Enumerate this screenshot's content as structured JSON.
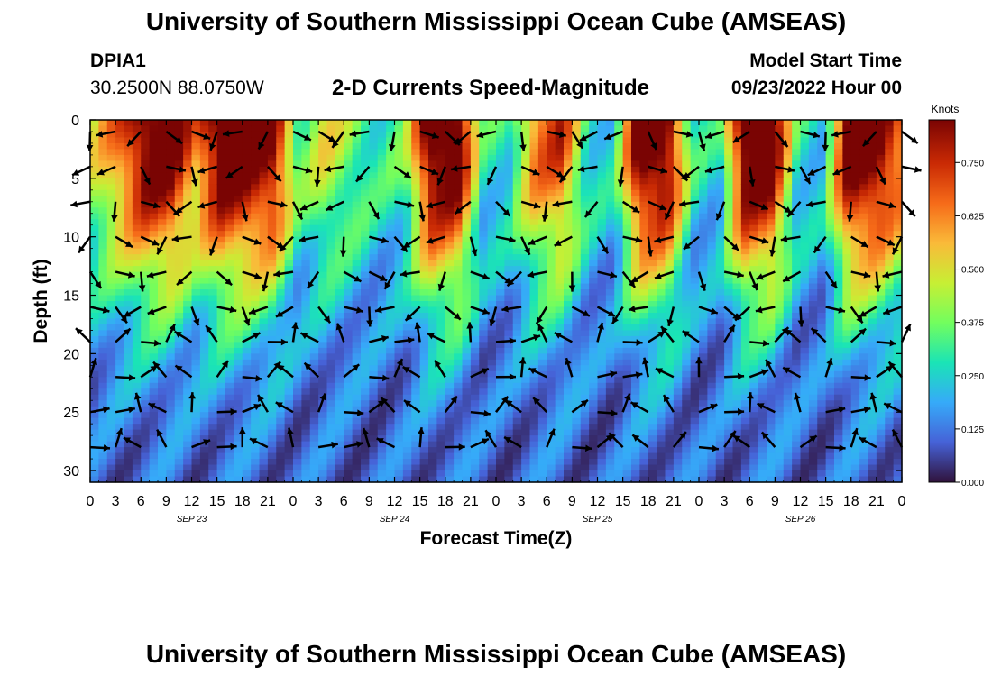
{
  "chart_data": {
    "type": "heatmap",
    "title": "University of Southern Mississippi Ocean Cube (AMSEAS)",
    "subtitle": "2-D Currents Speed-Magnitude",
    "station": "DPIA1",
    "coordinates": "30.2500N  88.0750W",
    "model_start_label": "Model Start Time",
    "model_start_value": "09/23/2022 Hour 00",
    "xlabel": "Forecast Time(Z)",
    "ylabel": "Depth (ft)",
    "colorbar_label": "Knots",
    "x_range": [
      0,
      96
    ],
    "y_range": [
      0,
      31
    ],
    "x_ticks": [
      0,
      3,
      6,
      9,
      12,
      15,
      18,
      21,
      24,
      27,
      30,
      33,
      36,
      39,
      42,
      45,
      48,
      51,
      54,
      57,
      60,
      63,
      66,
      69,
      72,
      75,
      78,
      81,
      84,
      87,
      90,
      93,
      96
    ],
    "x_tick_labels": [
      "0",
      "3",
      "6",
      "9",
      "12",
      "15",
      "18",
      "21",
      "0",
      "3",
      "6",
      "9",
      "12",
      "15",
      "18",
      "21",
      "0",
      "3",
      "6",
      "9",
      "12",
      "15",
      "18",
      "21",
      "0",
      "3",
      "6",
      "9",
      "12",
      "15",
      "18",
      "21",
      "0"
    ],
    "y_ticks": [
      0,
      5,
      10,
      15,
      20,
      25,
      30
    ],
    "y_tick_labels": [
      "0",
      "5",
      "10",
      "15",
      "20",
      "25",
      "30"
    ],
    "date_labels": [
      {
        "hour": 12,
        "text": "SEP 23"
      },
      {
        "hour": 36,
        "text": "SEP 24"
      },
      {
        "hour": 60,
        "text": "SEP 25"
      },
      {
        "hour": 84,
        "text": "SEP 26"
      }
    ],
    "colorbar_ticks": [
      0.0,
      0.125,
      0.25,
      0.375,
      0.5,
      0.625,
      0.75
    ],
    "colorbar_tick_labels": [
      "0.000",
      "0.125",
      "0.250",
      "0.375",
      "0.500",
      "0.625",
      "0.750"
    ],
    "colorbar_range": [
      0.0,
      0.85
    ],
    "colormap": [
      "#30123b",
      "#4662d7",
      "#36aaf9",
      "#1ae4b6",
      "#72fe5e",
      "#c7ef34",
      "#faba39",
      "#f66b19",
      "#ca2a04",
      "#7a0403"
    ],
    "surface_speed_profile": [
      0.35,
      0.55,
      0.8,
      0.85,
      0.55,
      0.85,
      0.85,
      0.8,
      0.25,
      0.4,
      0.3,
      0.2,
      0.25,
      0.85,
      0.85,
      0.2,
      0.2,
      0.55,
      0.65,
      0.2,
      0.15,
      0.85,
      0.85,
      0.2,
      0.15,
      0.85,
      0.85,
      0.2,
      0.15,
      0.85,
      0.85,
      0.6
    ],
    "vector_hours": [
      0,
      3,
      6,
      9,
      12,
      15,
      18,
      21,
      24,
      27,
      30,
      33,
      36,
      39,
      42,
      45,
      48,
      51,
      54,
      57,
      60,
      63,
      66,
      69,
      72,
      75,
      78,
      81,
      84,
      87,
      90,
      93,
      96
    ],
    "vector_depths": [
      1,
      4,
      7,
      10,
      13,
      16,
      19,
      22,
      25,
      28
    ]
  },
  "footer_title": "University of Southern Mississippi Ocean Cube (AMSEAS)"
}
